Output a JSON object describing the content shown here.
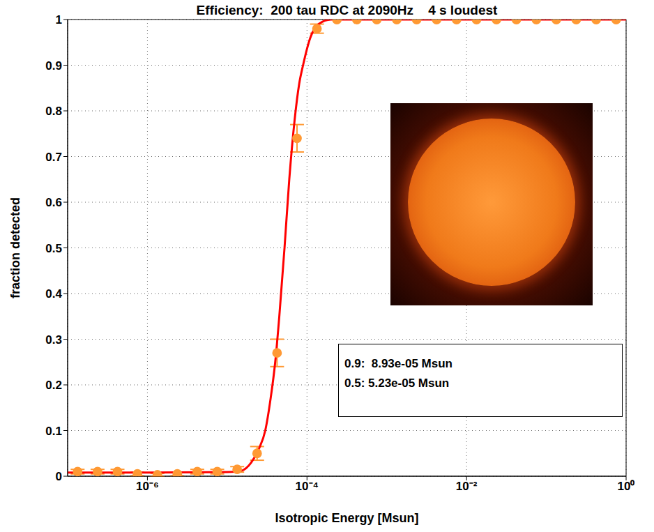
{
  "chart_data": {
    "type": "scatter",
    "title": "Efficiency:  200 tau RDC at 2090Hz    4 s loudest",
    "x_label": "Isotropic Energy [Msun]",
    "y_label": "fraction detected",
    "annotations": [
      "0.9:  8.93e-05 Msun",
      "0.5: 5.23e-05 Msun"
    ],
    "log": "x",
    "grid": true,
    "xlim": [
      1e-07,
      1
    ],
    "xticks": [
      {
        "value": 1e-06,
        "label": "10⁻⁶"
      },
      {
        "value": 0.0001,
        "label": "10⁻⁴"
      },
      {
        "value": 0.01,
        "label": "10⁻²"
      },
      {
        "value": 1,
        "label": "10⁰"
      }
    ],
    "ylim": [
      0,
      1
    ],
    "yticks": [
      0,
      0.1,
      0.2,
      0.3,
      0.4,
      0.5,
      0.6,
      0.7,
      0.8,
      0.9,
      1
    ],
    "series": [
      {
        "type": "scatter",
        "color": "#ff9933",
        "marker": "circle",
        "x": [
          1.334e-07,
          2.371e-07,
          4.217e-07,
          7.499e-07,
          1.334e-06,
          2.371e-06,
          4.217e-06,
          7.499e-06,
          1.334e-05,
          2.371e-05,
          4.217e-05,
          7.499e-05,
          0.0001334,
          0.0002371,
          0.0004217,
          0.0007499,
          0.001334,
          0.002371,
          0.004217,
          0.007499,
          0.01334,
          0.02371,
          0.04217,
          0.07499,
          0.1334,
          0.2371,
          0.4217,
          0.7499
        ],
        "values": [
          0.01,
          0.01,
          0.01,
          0.005,
          0.003,
          0.005,
          0.01,
          0.01,
          0.015,
          0.05,
          0.27,
          0.74,
          0.98,
          1,
          1,
          1,
          1,
          1,
          1,
          1,
          1,
          1,
          1,
          1,
          1,
          1,
          1,
          1
        ],
        "errors": [
          0.005,
          0.005,
          0.005,
          0.004,
          0.003,
          0.004,
          0.005,
          0.005,
          0.006,
          0.015,
          0.03,
          0.03,
          0.01,
          0,
          0,
          0,
          0,
          0,
          0,
          0,
          0,
          0,
          0,
          0,
          0,
          0,
          0,
          0
        ]
      },
      {
        "type": "line",
        "color": "#ff0000",
        "line_style": "solid",
        "x": [
          1e-07,
          1e-06,
          1e-05,
          1.5e-05,
          2e-05,
          2.5e-05,
          3e-05,
          3.5e-05,
          4e-05,
          4.5e-05,
          5.23e-05,
          6e-05,
          7e-05,
          8e-05,
          8.93e-05,
          0.00011,
          0.00014,
          0.0002,
          1
        ],
        "values": [
          0.008,
          0.008,
          0.009,
          0.012,
          0.03,
          0.06,
          0.1,
          0.17,
          0.25,
          0.35,
          0.5,
          0.65,
          0.78,
          0.86,
          0.9,
          0.96,
          0.99,
          1.0,
          1.0
        ]
      }
    ]
  }
}
